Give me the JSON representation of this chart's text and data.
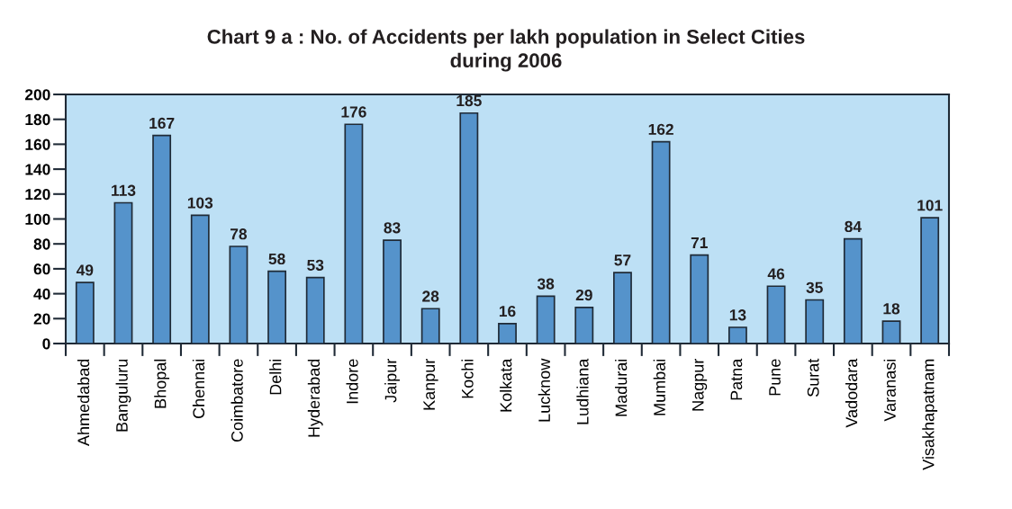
{
  "chart_data": {
    "type": "bar",
    "title": "Chart 9 a : No. of Accidents per lakh population in Select Cities\nduring 2006",
    "categories": [
      "Ahmedabad",
      "Banguluru",
      "Bhopal",
      "Chennai",
      "Coimbatore",
      "Delhi",
      "Hyderabad",
      "Indore",
      "Jaipur",
      "Kanpur",
      "Kochi",
      "Kolkata",
      "Lucknow",
      "Ludhiana",
      "Madurai",
      "Mumbai",
      "Nagpur",
      "Patna",
      "Pune",
      "Surat",
      "Vadodara",
      "Varanasi",
      "Visakhapatnam"
    ],
    "values": [
      49,
      113,
      167,
      103,
      78,
      58,
      53,
      176,
      83,
      28,
      185,
      16,
      38,
      29,
      57,
      162,
      71,
      13,
      46,
      35,
      84,
      18,
      101
    ],
    "color": "#5593cb",
    "ylim": [
      0,
      200
    ],
    "yticks": [
      0,
      20,
      40,
      60,
      80,
      100,
      120,
      140,
      160,
      180,
      200
    ],
    "grid": false,
    "legend": false,
    "data_labels": true
  }
}
